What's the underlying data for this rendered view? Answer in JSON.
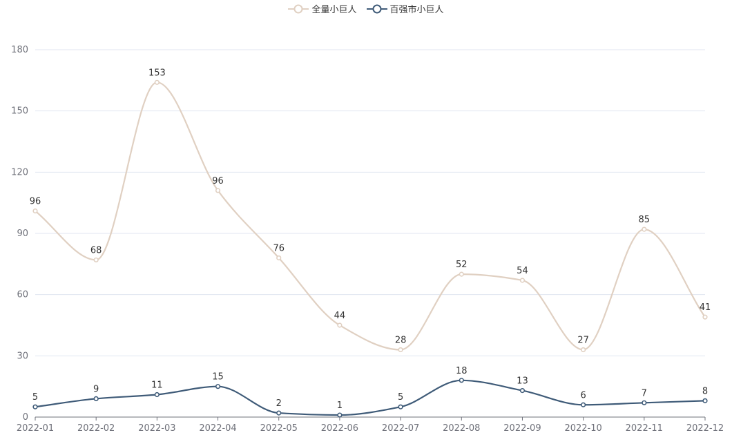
{
  "chart_data": {
    "type": "line",
    "smooth": true,
    "categories": [
      "2022-01",
      "2022-02",
      "2022-03",
      "2022-04",
      "2022-05",
      "2022-06",
      "2022-07",
      "2022-08",
      "2022-09",
      "2022-10",
      "2022-11",
      "2022-12"
    ],
    "ylim": [
      0,
      180
    ],
    "yticks": [
      0,
      30,
      60,
      90,
      120,
      150,
      180
    ],
    "grid": true,
    "legend_position": "top-center",
    "series": [
      {
        "name": "全量小巨人",
        "color": "#e0d0c2",
        "values": [
          101,
          77,
          164,
          111,
          78,
          45,
          33,
          70,
          67,
          33,
          92,
          49
        ],
        "labels": [
          "96",
          "68",
          "153",
          "96",
          "76",
          "44",
          "28",
          "52",
          "54",
          "27",
          "85",
          "41"
        ]
      },
      {
        "name": "百强市小巨人",
        "color": "#3f5b78",
        "values": [
          5,
          9,
          11,
          15,
          2,
          1,
          5,
          18,
          13,
          6,
          7,
          8
        ],
        "labels": [
          "5",
          "9",
          "11",
          "15",
          "2",
          "1",
          "5",
          "18",
          "13",
          "6",
          "7",
          "8"
        ]
      }
    ]
  }
}
